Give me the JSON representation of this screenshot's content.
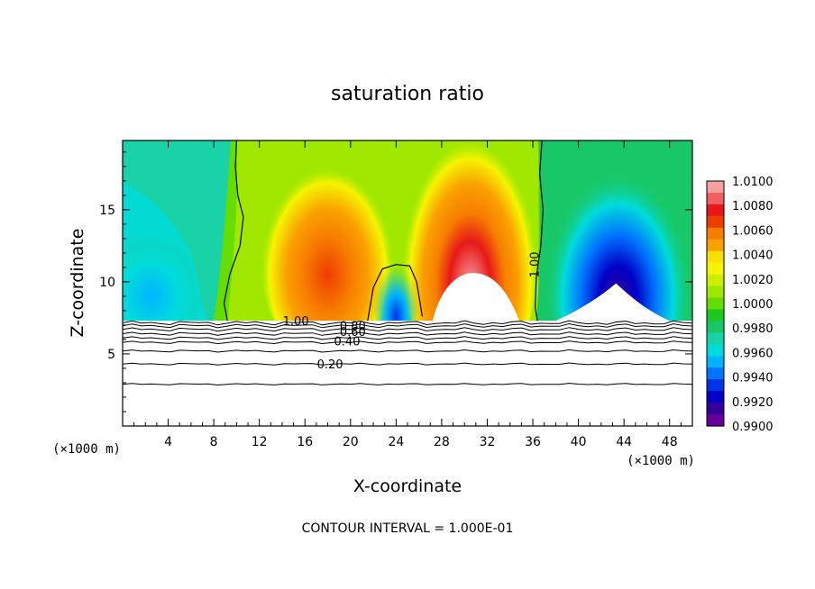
{
  "chart_data": {
    "type": "heatmap",
    "title": "saturation ratio",
    "xlabel": "X-coordinate",
    "ylabel": "Z-coordinate",
    "x_unit": "(×1000 m)",
    "y_unit": "(×1000 m)",
    "xlim": [
      0,
      50
    ],
    "ylim": [
      0,
      19.8
    ],
    "x_ticks": [
      4,
      8,
      12,
      16,
      20,
      24,
      28,
      32,
      36,
      40,
      44,
      48
    ],
    "y_ticks": [
      5,
      10,
      15
    ],
    "colorbar": {
      "ticks": [
        "1.0100",
        "1.0080",
        "1.0060",
        "1.0040",
        "1.0020",
        "1.0000",
        "0.9980",
        "0.9960",
        "0.9940",
        "0.9920",
        "0.9900"
      ],
      "colors": [
        "#f7a0a0",
        "#f06060",
        "#e81818",
        "#ef3d00",
        "#f77d00",
        "#faa000",
        "#f8e000",
        "#f6f400",
        "#cdf000",
        "#a0e800",
        "#66dd00",
        "#1ec81e",
        "#18c868",
        "#1ad2a8",
        "#00dcdc",
        "#00b4ff",
        "#0073ff",
        "#0033e6",
        "#0000c8",
        "#33009a",
        "#66009a"
      ]
    },
    "contour_labels": [
      "1.00",
      "1.00",
      "0.80",
      "0.60",
      "0.40",
      "0.20"
    ],
    "contour_interval_note": "CONTOUR INTERVAL = 1.000E-01"
  }
}
